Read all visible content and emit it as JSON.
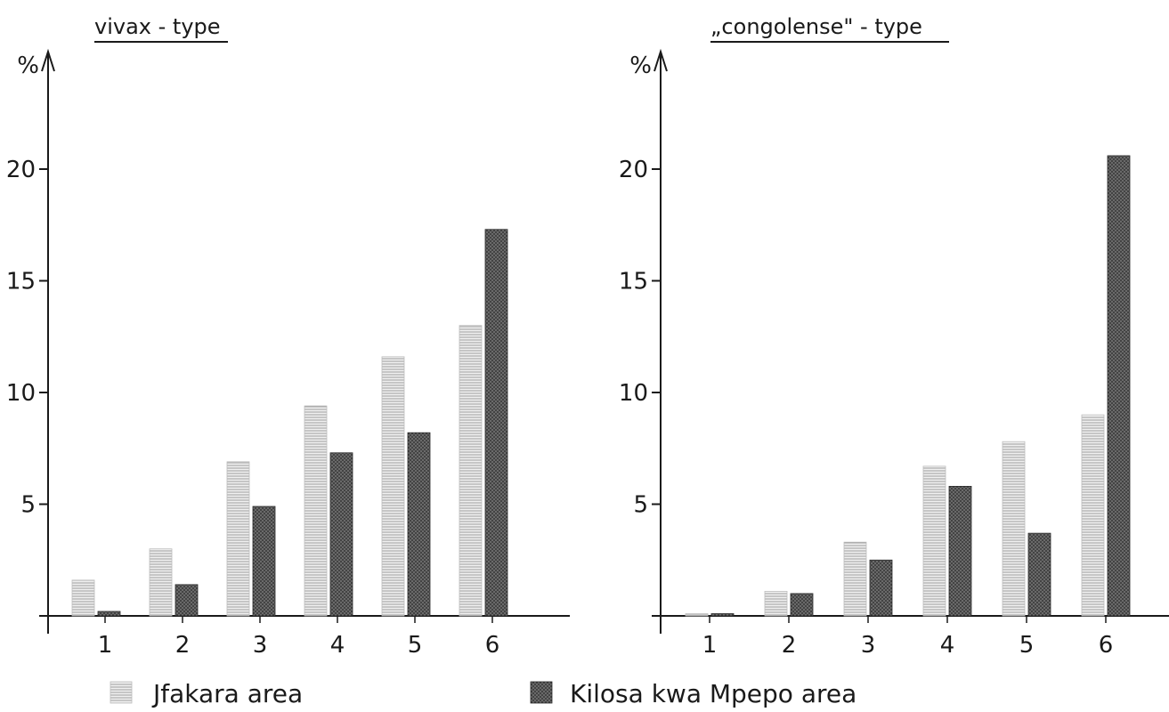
{
  "chart_data": [
    {
      "type": "bar",
      "title": "vivax - type",
      "ylabel": "%",
      "xlabel": "",
      "categories": [
        "1",
        "2",
        "3",
        "4",
        "5",
        "6"
      ],
      "yticks": [
        "5",
        "10",
        "15",
        "20"
      ],
      "ylim": [
        0,
        24
      ],
      "grid": false,
      "series": [
        {
          "name": "Jfakara area",
          "values": [
            1.6,
            3.0,
            6.9,
            9.4,
            11.6,
            13.0
          ]
        },
        {
          "name": "Kilosa kwa Mpepo area",
          "values": [
            0.2,
            1.4,
            4.9,
            7.3,
            8.2,
            17.3
          ]
        }
      ]
    },
    {
      "type": "bar",
      "title": "„congolense\" - type",
      "ylabel": "%",
      "xlabel": "",
      "categories": [
        "1",
        "2",
        "3",
        "4",
        "5",
        "6"
      ],
      "yticks": [
        "5",
        "10",
        "15",
        "20"
      ],
      "ylim": [
        0,
        24
      ],
      "grid": false,
      "series": [
        {
          "name": "Jfakara area",
          "values": [
            0.1,
            1.1,
            3.3,
            6.7,
            7.8,
            9.0
          ]
        },
        {
          "name": "Kilosa kwa Mpepo area",
          "values": [
            0.1,
            1.0,
            2.5,
            5.8,
            3.7,
            20.6
          ]
        }
      ]
    }
  ],
  "legend": {
    "placement": "bottom",
    "items": [
      {
        "label": "Jfakara area",
        "color": "#d6d6d6"
      },
      {
        "label": "Kilosa kwa Mpepo area",
        "color": "#555555"
      }
    ]
  }
}
